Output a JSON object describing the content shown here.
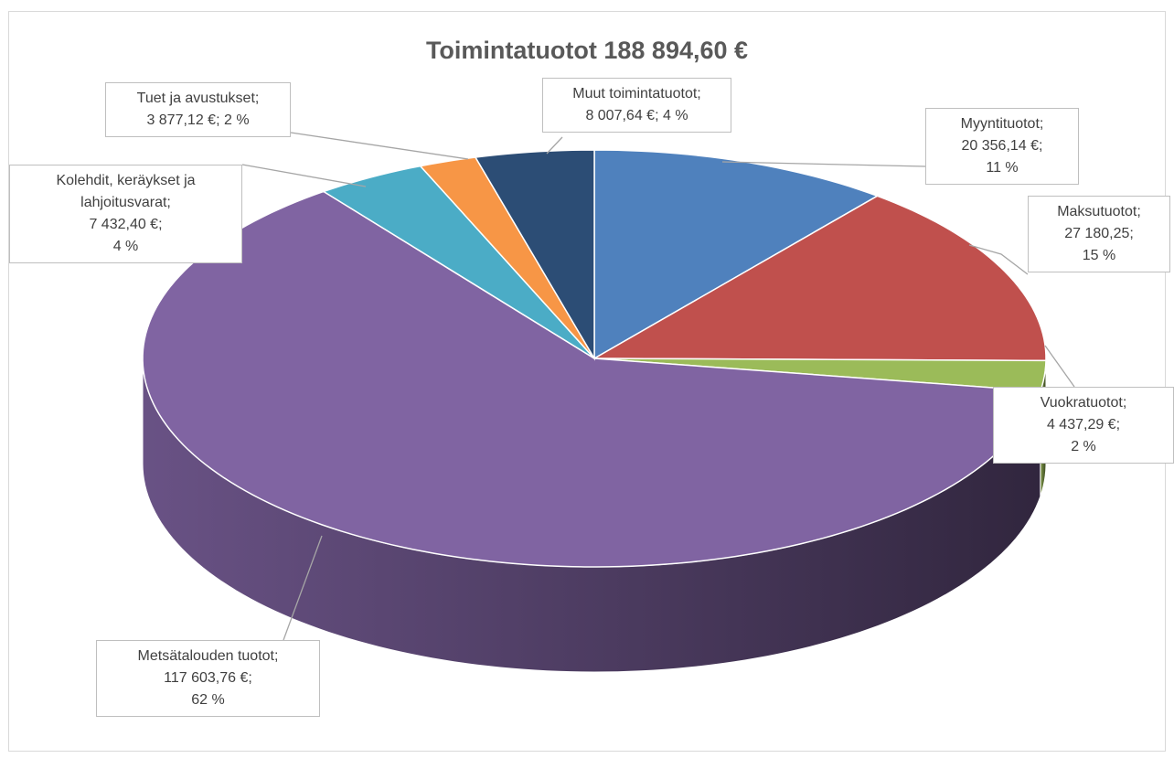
{
  "chart_data": {
    "type": "pie3d",
    "title": "Toimintatuotot 188 894,60 €",
    "categories": [
      "Myyntituotot;",
      "Maksutuotot;",
      "Vuokratuotot;",
      "Metsätalouden tuotot;",
      "Kolehdit, keräykset ja lahjoitusvarat;",
      "Tuet ja avustukset;",
      "Muut toimintatuotot;"
    ],
    "values": [
      20356.14,
      27180.25,
      4437.29,
      117603.76,
      7432.4,
      3877.12,
      8007.64
    ],
    "value_labels": [
      "20 356,14 €;",
      "27 180,25;",
      "4 437,29 €;",
      "117 603,76 €;",
      "7 432,40 €;",
      "3 877,12 €;",
      "8 007,64 €;"
    ],
    "percent_labels": [
      "11 %",
      "15 %",
      "2 %",
      "62 %",
      "4 %",
      "2 %",
      "4 %"
    ],
    "colors": [
      "#4f81bd",
      "#c0504d",
      "#9bbb59",
      "#8064a2",
      "#4bacc6",
      "#f79646",
      "#2c4d75"
    ]
  }
}
